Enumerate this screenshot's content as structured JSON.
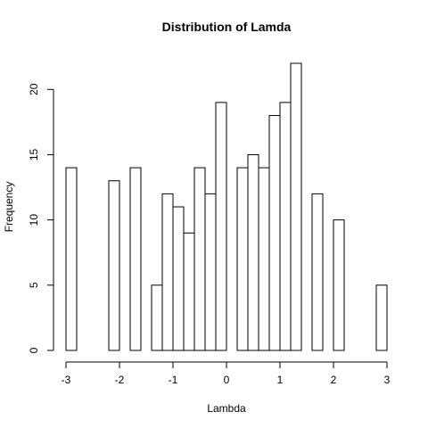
{
  "chart_data": {
    "type": "bar",
    "title": "Distribution of Lamda",
    "xlabel": "Lambda",
    "ylabel": "Frequency",
    "xlim": [
      -3,
      3
    ],
    "ylim": [
      0,
      22
    ],
    "bin_width": 0.2,
    "x_ticks": [
      -3,
      -2,
      -1,
      0,
      1,
      2,
      3
    ],
    "y_ticks": [
      0,
      5,
      10,
      15,
      20
    ],
    "bins": [
      {
        "x0": -3.0,
        "x1": -2.8,
        "count": 14
      },
      {
        "x0": -2.8,
        "x1": -2.6,
        "count": 0
      },
      {
        "x0": -2.6,
        "x1": -2.4,
        "count": 0
      },
      {
        "x0": -2.4,
        "x1": -2.2,
        "count": 0
      },
      {
        "x0": -2.2,
        "x1": -2.0,
        "count": 13
      },
      {
        "x0": -2.0,
        "x1": -1.8,
        "count": 0
      },
      {
        "x0": -1.8,
        "x1": -1.6,
        "count": 14
      },
      {
        "x0": -1.6,
        "x1": -1.4,
        "count": 0
      },
      {
        "x0": -1.4,
        "x1": -1.2,
        "count": 5
      },
      {
        "x0": -1.2,
        "x1": -1.0,
        "count": 12
      },
      {
        "x0": -1.0,
        "x1": -0.8,
        "count": 11
      },
      {
        "x0": -0.8,
        "x1": -0.6,
        "count": 9
      },
      {
        "x0": -0.6,
        "x1": -0.4,
        "count": 14
      },
      {
        "x0": -0.4,
        "x1": -0.2,
        "count": 12
      },
      {
        "x0": -0.2,
        "x1": 0.0,
        "count": 19
      },
      {
        "x0": 0.0,
        "x1": 0.2,
        "count": 0
      },
      {
        "x0": 0.2,
        "x1": 0.4,
        "count": 14
      },
      {
        "x0": 0.4,
        "x1": 0.6,
        "count": 15
      },
      {
        "x0": 0.6,
        "x1": 0.8,
        "count": 14
      },
      {
        "x0": 0.8,
        "x1": 1.0,
        "count": 18
      },
      {
        "x0": 1.0,
        "x1": 1.2,
        "count": 19
      },
      {
        "x0": 1.2,
        "x1": 1.4,
        "count": 22
      },
      {
        "x0": 1.4,
        "x1": 1.6,
        "count": 0
      },
      {
        "x0": 1.6,
        "x1": 1.8,
        "count": 12
      },
      {
        "x0": 1.8,
        "x1": 2.0,
        "count": 0
      },
      {
        "x0": 2.0,
        "x1": 2.2,
        "count": 10
      },
      {
        "x0": 2.2,
        "x1": 2.4,
        "count": 0
      },
      {
        "x0": 2.4,
        "x1": 2.6,
        "count": 0
      },
      {
        "x0": 2.6,
        "x1": 2.8,
        "count": 0
      },
      {
        "x0": 2.8,
        "x1": 3.0,
        "count": 5
      }
    ],
    "grid": false,
    "colors": {
      "bar_fill": "#ffffff",
      "bar_stroke": "#000000",
      "background": "#ffffff"
    }
  }
}
